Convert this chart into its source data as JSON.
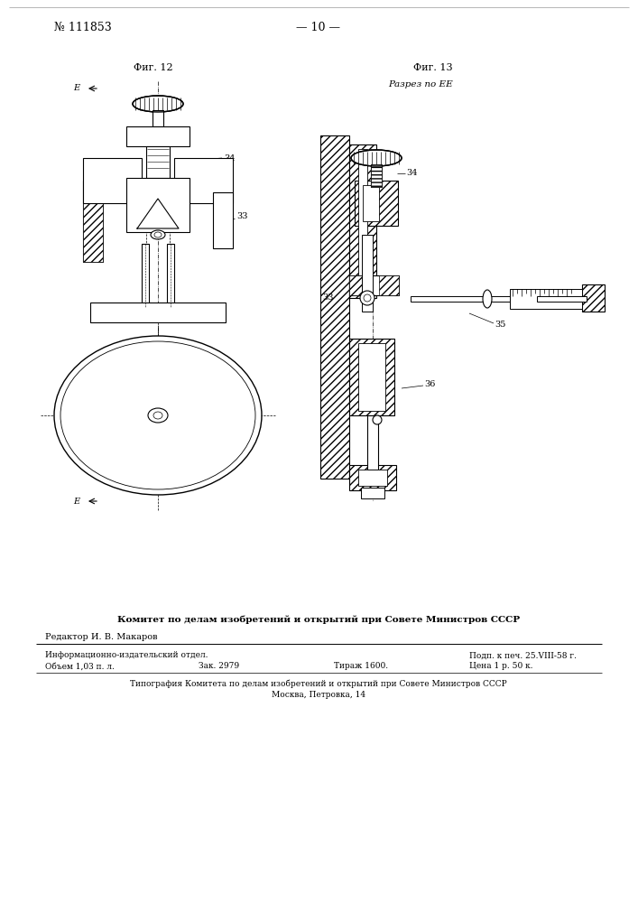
{
  "page_number": "111853",
  "page_num_right": "10",
  "bg_color": "#ffffff",
  "fig12_label": "Фиг. 12",
  "fig13_label": "Фиг. 13",
  "fig13_sublabel": "Разрез по ЕЕ",
  "footer_bold_line1": "Комитет по делам изобретений и открытий при Совете Министров СССР",
  "footer_editor": "Редактор И. В. Макаров",
  "footer_info1_left": "Информационно-издательский отдел.",
  "footer_info1_right": "Подп. к печ. 25.VIII-58 г.",
  "footer_info2_left1": "Объем 1,03 п. л.",
  "footer_info2_left2": "Зак. 2979",
  "footer_info2_mid": "Тираж 1600.",
  "footer_info2_right": "Цена 1 р. 50 к.",
  "footer_typo1": "Типография Комитета по делам изобретений и открытий при Совете Министров СССР",
  "footer_typo2": "Москва, Петровка, 14"
}
